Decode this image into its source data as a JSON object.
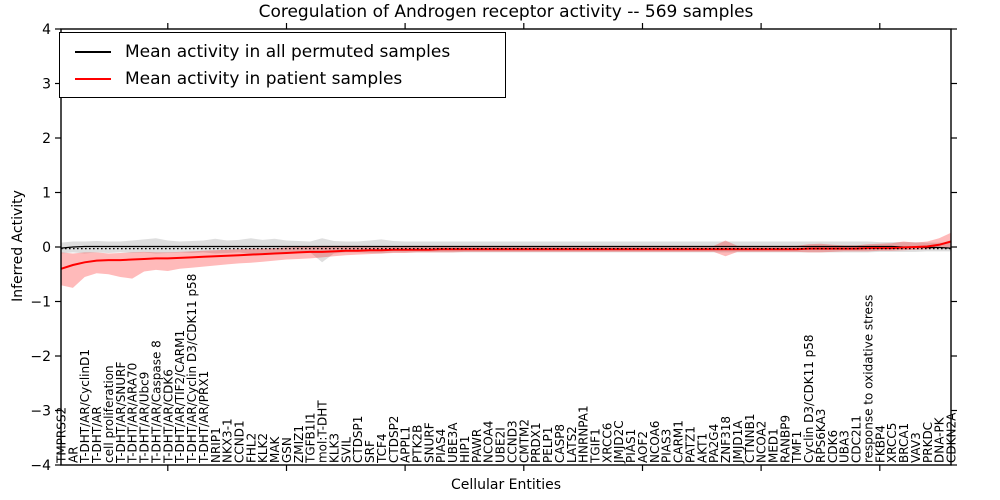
{
  "legend": {
    "items": [
      {
        "label": "Mean activity in all permuted samples",
        "color": "#000000"
      },
      {
        "label": "Mean activity in patient samples",
        "color": "#ff0000"
      }
    ]
  },
  "chart_data": {
    "type": "line",
    "title": "Coregulation of Androgen receptor activity -- 569 samples",
    "xlabel": "Cellular Entities",
    "ylabel": "Inferred Activity",
    "ylim": [
      -4,
      4
    ],
    "yticks": [
      4,
      3,
      2,
      1,
      0,
      -1,
      -2,
      -3,
      -4
    ],
    "ytick_labels": [
      "4",
      "3",
      "2",
      "1",
      "0",
      "−1",
      "−2",
      "−3",
      "−4"
    ],
    "xticks_at": [
      9,
      19,
      29,
      39,
      49,
      59,
      69
    ],
    "grid": false,
    "legend_position": "upper left",
    "categories": [
      "TMPRSS2",
      "AR",
      "T-DHT/AR/CyclinD1",
      "T-DHT/AR",
      "cell proliferation",
      "T-DHT/AR/SNURF",
      "T-DHT/AR/ARA70",
      "T-DHT/AR/Ubc9",
      "T-DHT/AR/Caspase 8",
      "T-DHT/AR/CDK6",
      "T-DHT/AR/TIF2/CARM1",
      "T-DHT/AR/Cyclin D3/CDK11 p58",
      "T-DHT/AR/PRX1",
      "NRIP1",
      "NKX3-1",
      "CCND1",
      "FHL2",
      "KLK2",
      "MAK",
      "GSN",
      "ZMIZ1",
      "TGFB1I1",
      "mol:T-DHT",
      "KLK3",
      "SVIL",
      "CTDSP1",
      "SRF",
      "TCF4",
      "CTDSP2",
      "APPL1",
      "PTK2B",
      "SNURF",
      "PIAS4",
      "UBE3A",
      "HIP1",
      "PAWR",
      "NCOA4",
      "UBE2I",
      "CCND3",
      "CMTM2",
      "PRDX1",
      "PELP1",
      "CASP8",
      "LATS2",
      "HNRNPA1",
      "TGIF1",
      "XRCC6",
      "JMJD2C",
      "PIAS1",
      "AOF2",
      "NCOA6",
      "PIAS3",
      "CARM1",
      "PATZ1",
      "AKT1",
      "PA2G4",
      "ZNF318",
      "JMJD1A",
      "CTNNB1",
      "NCOA2",
      "MED1",
      "RANBP9",
      "TMF1",
      "Cyclin D3/CDK11 p58",
      "RPS6KA3",
      "CDK6",
      "UBA3",
      "CDC2L1",
      "response to oxidative stress",
      "FKBP4",
      "XRCC5",
      "BRCA1",
      "VAV3",
      "PRKDC",
      "DNA-PK",
      "CDKN2A"
    ],
    "series": [
      {
        "name": "Mean activity in all permuted samples",
        "color": "#000000",
        "line_width": 1.3,
        "values": [
          -0.02,
          0.0,
          0.01,
          0.01,
          0.01,
          0.01,
          0.01,
          0.01,
          0.01,
          0.01,
          0.01,
          0.01,
          0.01,
          0.01,
          0.01,
          0.01,
          0.01,
          0.01,
          0.01,
          0.01,
          0.01,
          0.01,
          0.01,
          0.01,
          0.01,
          0.01,
          0.01,
          0.01,
          0.01,
          0.01,
          0.01,
          0.01,
          0.01,
          0.01,
          0.01,
          0.01,
          0.01,
          0.01,
          0.01,
          0.01,
          0.01,
          0.01,
          0.01,
          0.01,
          0.01,
          0.01,
          0.01,
          0.01,
          0.01,
          0.01,
          0.01,
          0.01,
          0.01,
          0.01,
          0.01,
          0.01,
          0.01,
          0.01,
          0.01,
          0.01,
          0.01,
          0.01,
          0.01,
          0.01,
          0.01,
          0.01,
          0.01,
          0.01,
          0.01,
          0.01,
          0.01,
          0.0,
          0.0,
          -0.01,
          -0.01,
          -0.02
        ],
        "band": {
          "color": "#999999",
          "opacity": 0.32,
          "hi": [
            0.08,
            0.1,
            0.1,
            0.11,
            0.1,
            0.1,
            0.12,
            0.14,
            0.16,
            0.12,
            0.1,
            0.11,
            0.12,
            0.15,
            0.12,
            0.13,
            0.16,
            0.13,
            0.15,
            0.12,
            0.11,
            0.1,
            0.16,
            0.11,
            0.1,
            0.1,
            0.12,
            0.14,
            0.11,
            0.1,
            0.1,
            0.1,
            0.1,
            0.1,
            0.1,
            0.1,
            0.1,
            0.1,
            0.1,
            0.1,
            0.1,
            0.1,
            0.1,
            0.1,
            0.1,
            0.1,
            0.1,
            0.1,
            0.1,
            0.1,
            0.1,
            0.1,
            0.1,
            0.1,
            0.1,
            0.1,
            0.1,
            0.1,
            0.1,
            0.1,
            0.1,
            0.1,
            0.1,
            0.1,
            0.1,
            0.1,
            0.1,
            0.1,
            0.1,
            0.09,
            0.09,
            0.09,
            0.09,
            0.08,
            0.08,
            0.08
          ],
          "lo": [
            -0.12,
            -0.1,
            -0.12,
            -0.1,
            -0.11,
            -0.1,
            -0.11,
            -0.1,
            -0.12,
            -0.11,
            -0.1,
            -0.11,
            -0.1,
            -0.12,
            -0.11,
            -0.1,
            -0.13,
            -0.11,
            -0.12,
            -0.1,
            -0.11,
            -0.1,
            -0.28,
            -0.12,
            -0.1,
            -0.1,
            -0.11,
            -0.12,
            -0.1,
            -0.1,
            -0.1,
            -0.1,
            -0.1,
            -0.1,
            -0.1,
            -0.1,
            -0.1,
            -0.1,
            -0.1,
            -0.1,
            -0.1,
            -0.1,
            -0.1,
            -0.1,
            -0.1,
            -0.1,
            -0.1,
            -0.1,
            -0.1,
            -0.1,
            -0.1,
            -0.1,
            -0.1,
            -0.1,
            -0.1,
            -0.1,
            -0.1,
            -0.1,
            -0.1,
            -0.1,
            -0.1,
            -0.1,
            -0.1,
            -0.1,
            -0.1,
            -0.1,
            -0.1,
            -0.1,
            -0.1,
            -0.09,
            -0.09,
            -0.09,
            -0.09,
            -0.08,
            -0.08,
            -0.08
          ]
        }
      },
      {
        "name": "Mean activity in patient samples",
        "color": "#ff0000",
        "line_width": 2,
        "values": [
          -0.4,
          -0.33,
          -0.28,
          -0.25,
          -0.24,
          -0.24,
          -0.23,
          -0.22,
          -0.21,
          -0.21,
          -0.2,
          -0.19,
          -0.18,
          -0.17,
          -0.16,
          -0.15,
          -0.14,
          -0.13,
          -0.12,
          -0.11,
          -0.1,
          -0.09,
          -0.09,
          -0.08,
          -0.07,
          -0.07,
          -0.06,
          -0.06,
          -0.05,
          -0.05,
          -0.05,
          -0.05,
          -0.04,
          -0.04,
          -0.04,
          -0.04,
          -0.04,
          -0.04,
          -0.04,
          -0.04,
          -0.04,
          -0.04,
          -0.04,
          -0.04,
          -0.04,
          -0.04,
          -0.04,
          -0.04,
          -0.04,
          -0.04,
          -0.04,
          -0.04,
          -0.04,
          -0.04,
          -0.04,
          -0.04,
          -0.04,
          -0.04,
          -0.04,
          -0.04,
          -0.04,
          -0.04,
          -0.04,
          -0.03,
          -0.03,
          -0.03,
          -0.03,
          -0.03,
          -0.02,
          -0.02,
          -0.02,
          -0.01,
          0.0,
          0.01,
          0.04,
          0.1
        ],
        "band": {
          "color": "#ff0000",
          "opacity": 0.27,
          "hi": [
            -0.1,
            -0.12,
            -0.1,
            -0.1,
            -0.12,
            -0.11,
            -0.1,
            -0.09,
            -0.1,
            -0.1,
            -0.09,
            -0.08,
            -0.07,
            -0.06,
            -0.05,
            -0.04,
            -0.03,
            -0.03,
            -0.02,
            -0.01,
            0.0,
            0.01,
            0.02,
            0.02,
            0.02,
            0.02,
            0.02,
            0.01,
            0.01,
            0.02,
            0.02,
            0.02,
            0.02,
            0.02,
            0.02,
            0.02,
            0.02,
            0.02,
            0.02,
            0.02,
            0.02,
            0.02,
            0.02,
            0.02,
            0.02,
            0.02,
            0.02,
            0.02,
            0.02,
            0.02,
            0.02,
            0.02,
            0.02,
            0.02,
            0.02,
            0.02,
            0.12,
            0.02,
            0.02,
            0.02,
            0.02,
            0.02,
            0.02,
            0.05,
            0.06,
            0.04,
            0.03,
            0.03,
            0.05,
            0.06,
            0.07,
            0.1,
            0.08,
            0.1,
            0.16,
            0.26
          ],
          "lo": [
            -0.7,
            -0.75,
            -0.55,
            -0.48,
            -0.5,
            -0.55,
            -0.58,
            -0.45,
            -0.42,
            -0.44,
            -0.4,
            -0.38,
            -0.36,
            -0.34,
            -0.32,
            -0.3,
            -0.29,
            -0.27,
            -0.25,
            -0.23,
            -0.22,
            -0.21,
            -0.19,
            -0.17,
            -0.15,
            -0.14,
            -0.13,
            -0.12,
            -0.11,
            -0.11,
            -0.1,
            -0.1,
            -0.1,
            -0.1,
            -0.09,
            -0.09,
            -0.09,
            -0.09,
            -0.09,
            -0.09,
            -0.09,
            -0.09,
            -0.09,
            -0.09,
            -0.09,
            -0.09,
            -0.09,
            -0.09,
            -0.09,
            -0.09,
            -0.09,
            -0.09,
            -0.09,
            -0.09,
            -0.09,
            -0.09,
            -0.17,
            -0.09,
            -0.09,
            -0.09,
            -0.09,
            -0.09,
            -0.09,
            -0.1,
            -0.1,
            -0.09,
            -0.08,
            -0.08,
            -0.08,
            -0.07,
            -0.07,
            -0.06,
            -0.05,
            -0.04,
            -0.02,
            0.0
          ]
        }
      }
    ],
    "reference_line": {
      "value": -0.03,
      "color": "#000000",
      "style": "dotted"
    }
  }
}
